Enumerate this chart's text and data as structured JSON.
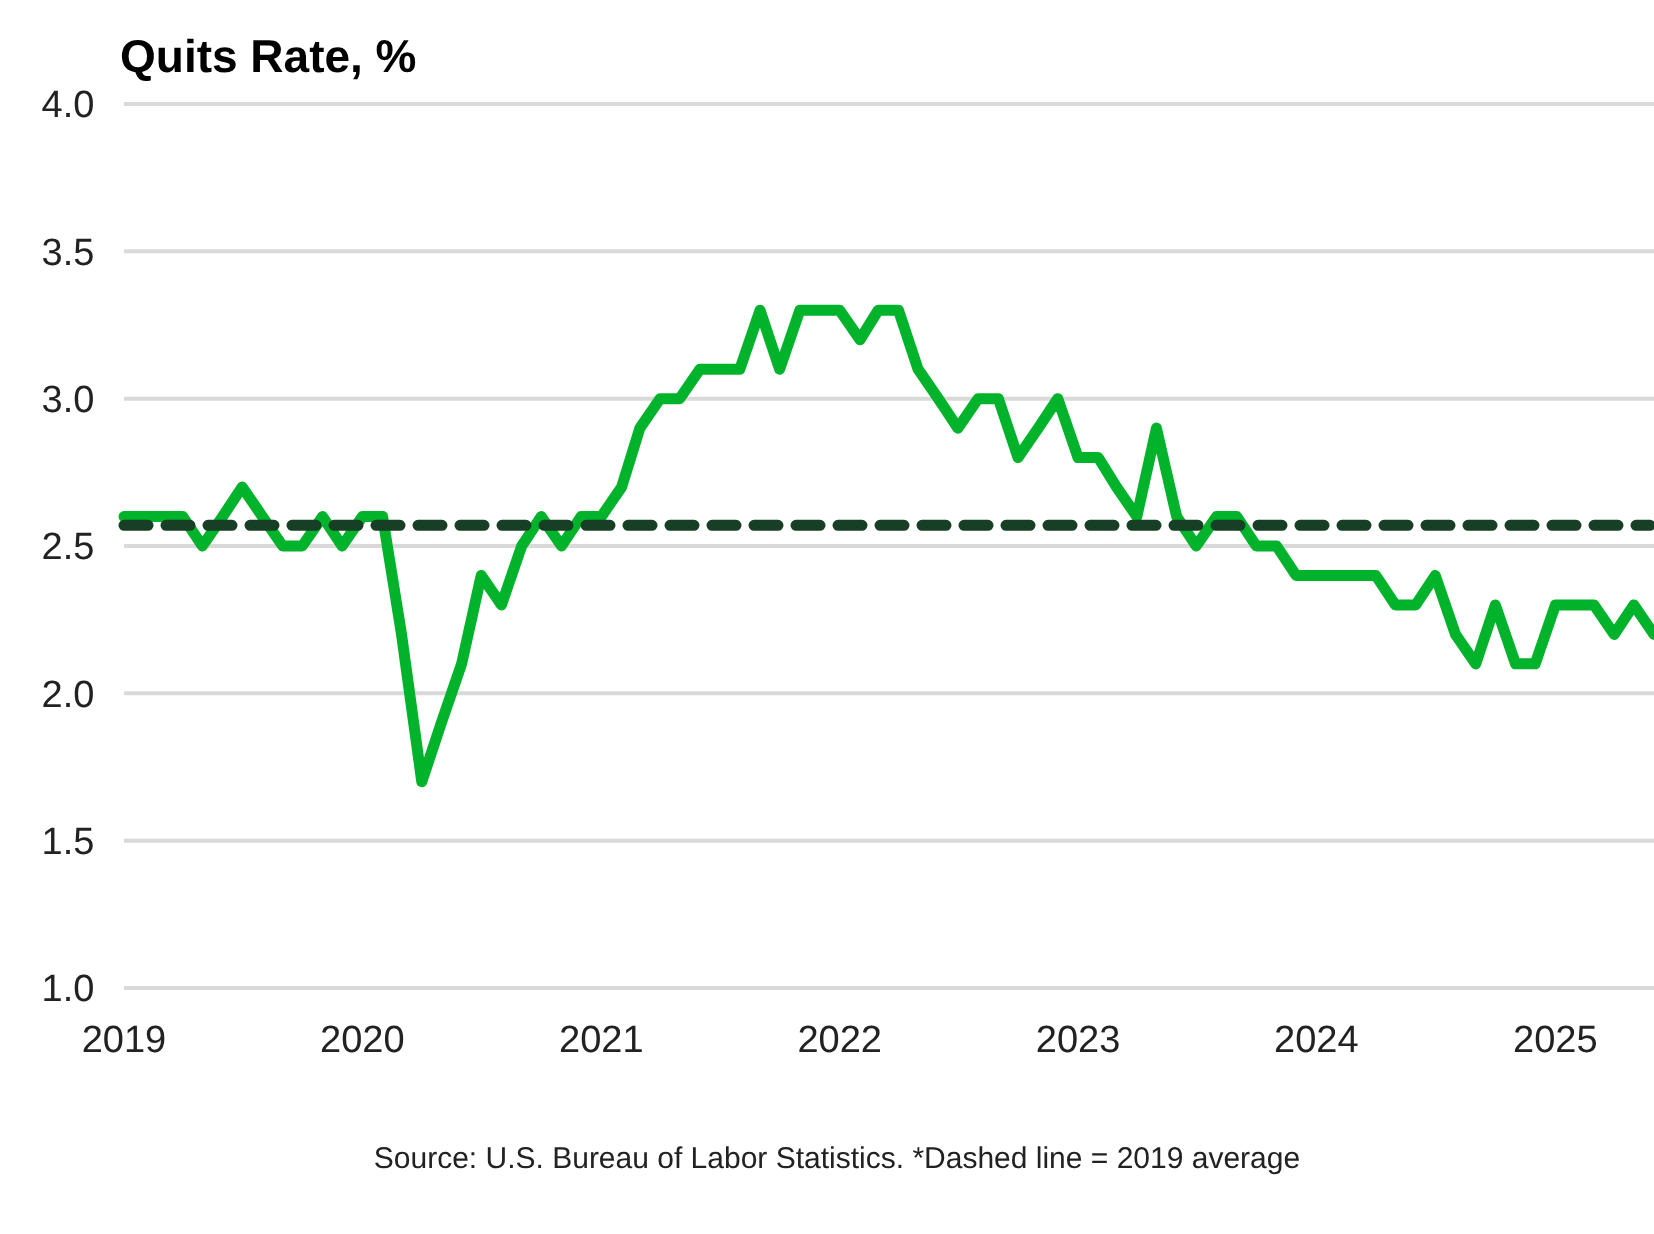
{
  "chart_data": {
    "type": "line",
    "title": "Quits Rate, %",
    "x": [
      "2019-01",
      "2019-02",
      "2019-03",
      "2019-04",
      "2019-05",
      "2019-06",
      "2019-07",
      "2019-08",
      "2019-09",
      "2019-10",
      "2019-11",
      "2019-12",
      "2020-01",
      "2020-02",
      "2020-03",
      "2020-04",
      "2020-05",
      "2020-06",
      "2020-07",
      "2020-08",
      "2020-09",
      "2020-10",
      "2020-11",
      "2020-12",
      "2021-01",
      "2021-02",
      "2021-03",
      "2021-04",
      "2021-05",
      "2021-06",
      "2021-07",
      "2021-08",
      "2021-09",
      "2021-10",
      "2021-11",
      "2021-12",
      "2022-01",
      "2022-02",
      "2022-03",
      "2022-04",
      "2022-05",
      "2022-06",
      "2022-07",
      "2022-08",
      "2022-09",
      "2022-10",
      "2022-11",
      "2022-12",
      "2023-01",
      "2023-02",
      "2023-03",
      "2023-04",
      "2023-05",
      "2023-06",
      "2023-07",
      "2023-08",
      "2023-09",
      "2023-10",
      "2023-11",
      "2023-12",
      "2024-01",
      "2024-02",
      "2024-03",
      "2024-04",
      "2024-05",
      "2024-06",
      "2024-07",
      "2024-08",
      "2024-09",
      "2024-10",
      "2024-11",
      "2024-12",
      "2025-01",
      "2025-02",
      "2025-03",
      "2025-04",
      "2025-05",
      "2025-06"
    ],
    "series": [
      {
        "color": "#00b32a",
        "values": [
          2.6,
          2.6,
          2.6,
          2.6,
          2.5,
          2.6,
          2.7,
          2.6,
          2.5,
          2.5,
          2.6,
          2.5,
          2.6,
          2.6,
          2.2,
          1.7,
          1.9,
          2.1,
          2.4,
          2.3,
          2.5,
          2.6,
          2.5,
          2.6,
          2.6,
          2.7,
          2.9,
          3.0,
          3.0,
          3.1,
          3.1,
          3.1,
          3.3,
          3.1,
          3.3,
          3.3,
          3.3,
          3.2,
          3.3,
          3.3,
          3.1,
          3.0,
          2.9,
          3.0,
          3.0,
          2.8,
          2.9,
          3.0,
          2.8,
          2.8,
          2.7,
          2.6,
          2.9,
          2.6,
          2.5,
          2.6,
          2.6,
          2.5,
          2.5,
          2.4,
          2.4,
          2.4,
          2.4,
          2.4,
          2.3,
          2.3,
          2.4,
          2.2,
          2.1,
          2.3,
          2.1,
          2.1,
          2.3,
          2.3,
          2.3,
          2.2,
          2.3,
          2.2
        ]
      }
    ],
    "xlim": [
      "2019-01",
      "2025-06"
    ],
    "xticks": [
      "2019",
      "2020",
      "2021",
      "2022",
      "2023",
      "2024",
      "2025"
    ],
    "ylim": [
      1.0,
      4.0
    ],
    "yticks": [
      {
        "value": 1,
        "label": "1.0"
      },
      {
        "value": 1.5,
        "label": "1.5"
      },
      {
        "value": 2,
        "label": "2.0"
      },
      {
        "value": 2.5,
        "label": "2.5"
      },
      {
        "value": 3,
        "label": "3.0"
      },
      {
        "value": 3.5,
        "label": "3.5"
      },
      {
        "value": 4,
        "label": "4.0"
      }
    ],
    "grid": "y",
    "marker": "none",
    "line_style": "solid",
    "ref_lines": [
      {
        "axis": "y",
        "value": 2.57,
        "color": "#173f25",
        "line_style": "dashed"
      }
    ],
    "annotations": [
      "Source: U.S. Bureau of Labor Statistics. *Dashed line = 2019 average"
    ]
  }
}
